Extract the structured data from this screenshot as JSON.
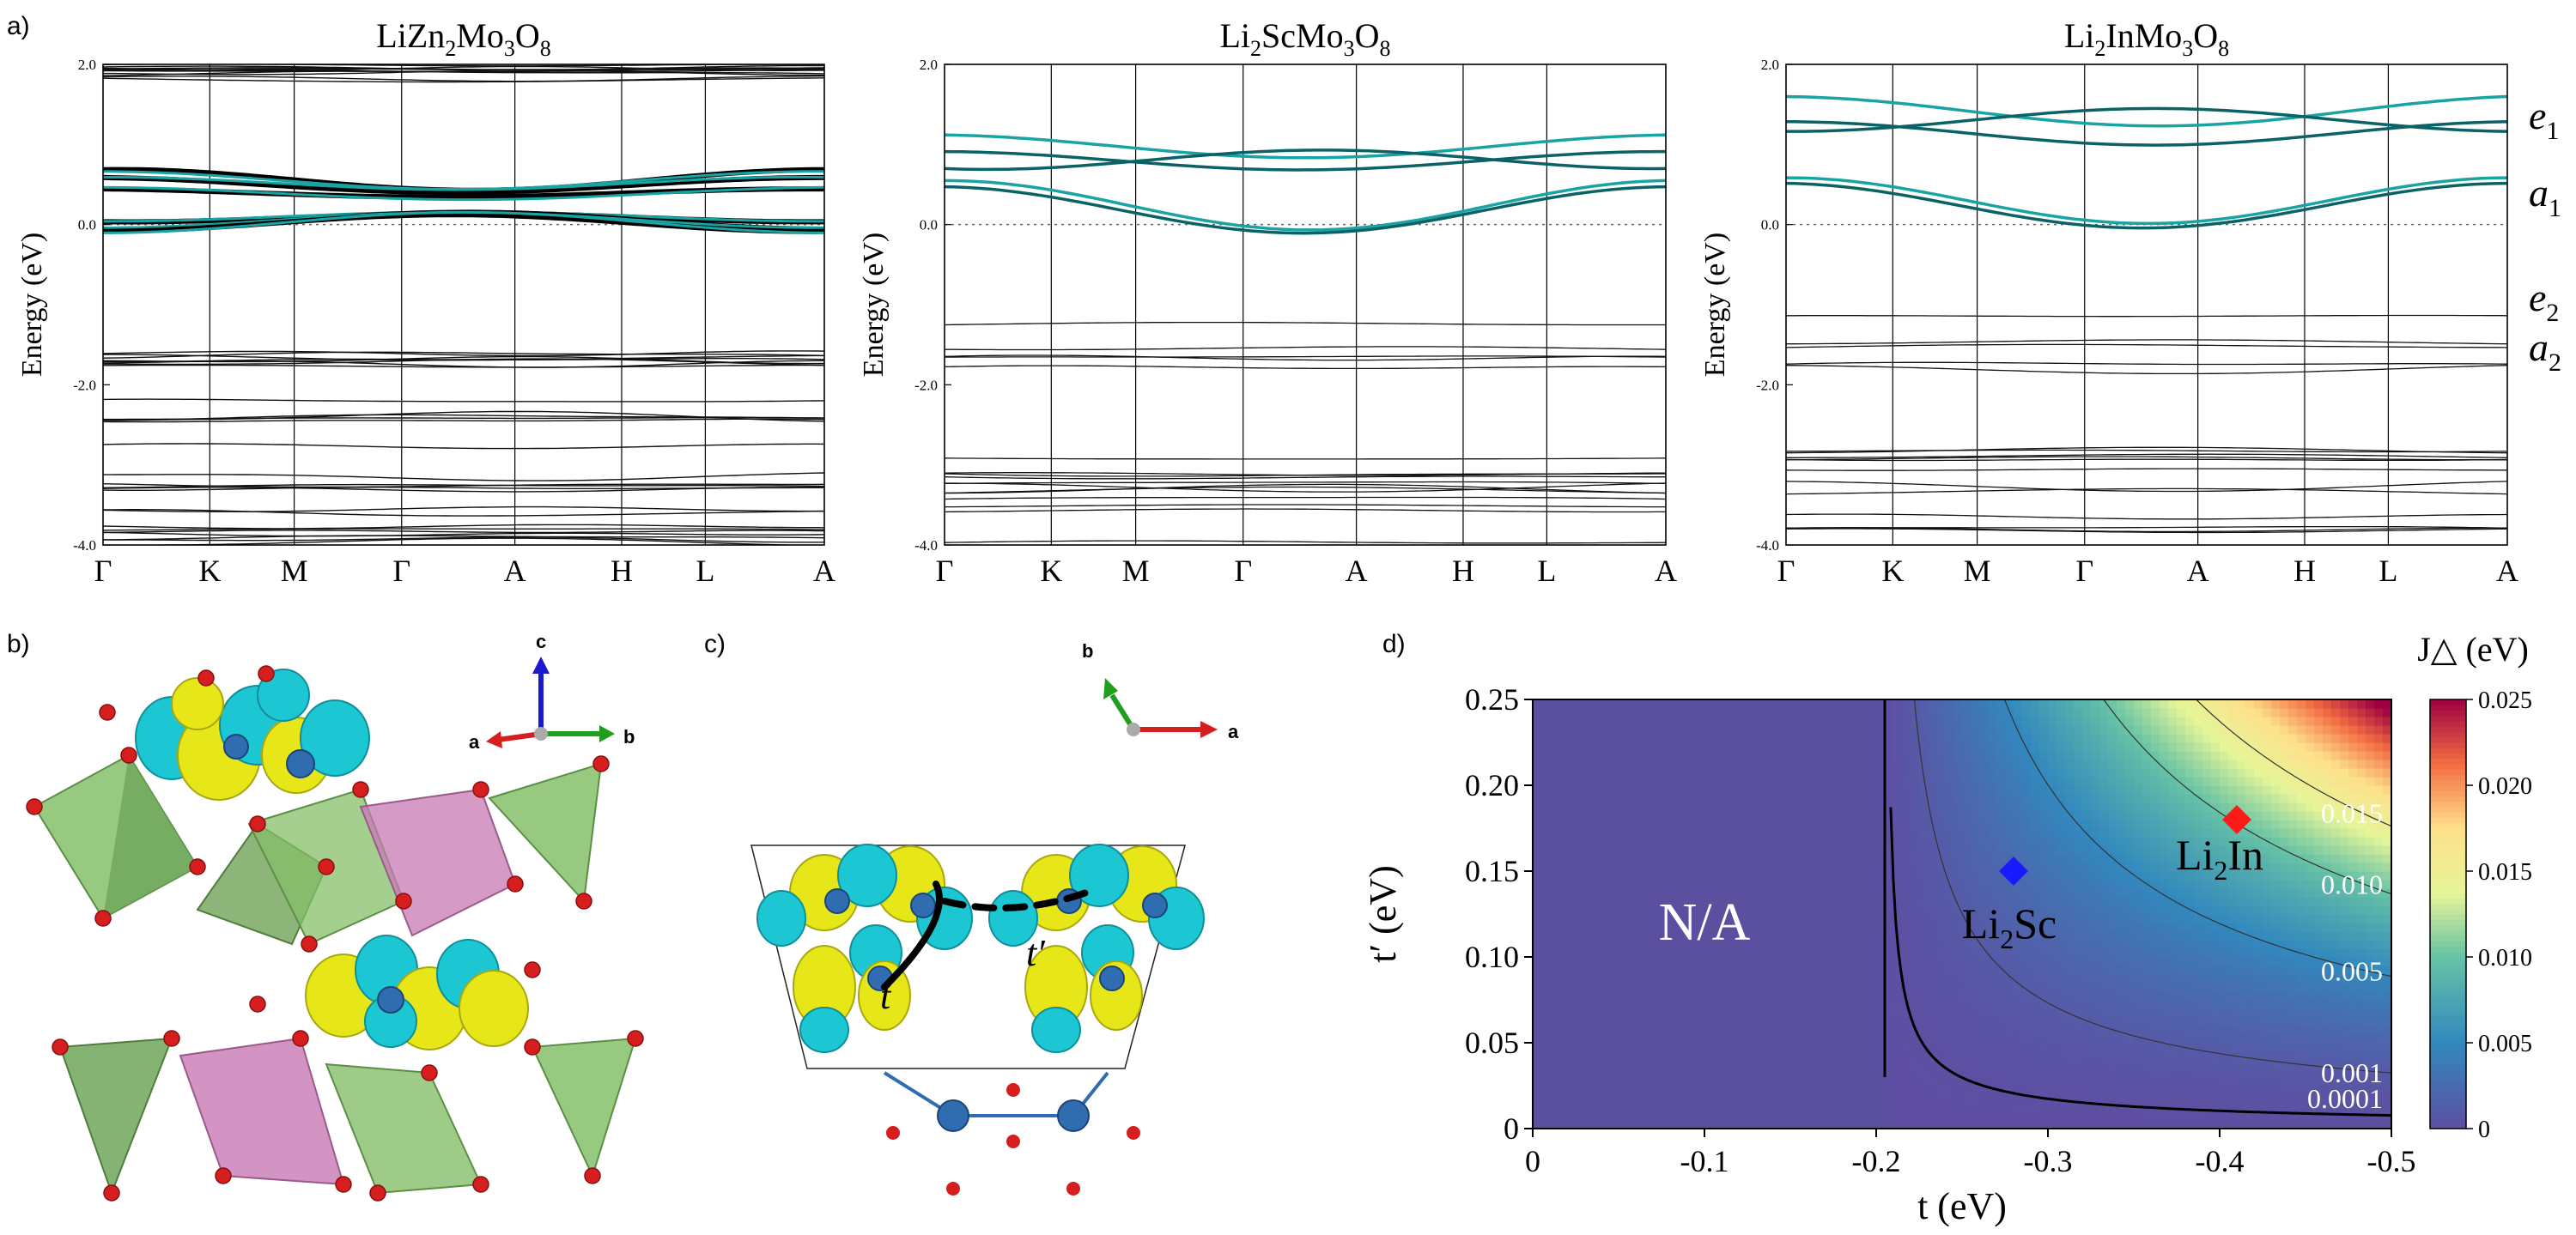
{
  "panel_labels": {
    "a": "a)",
    "b": "b)",
    "c": "c)",
    "d": "d)"
  },
  "band_panels": [
    {
      "formula": [
        [
          "LiZn",
          ""
        ],
        [
          "2",
          "sub"
        ],
        [
          "Mo",
          ""
        ],
        [
          "3",
          "sub"
        ],
        [
          "O",
          ""
        ],
        [
          "8",
          "sub"
        ]
      ],
      "show_right_labels": false
    },
    {
      "formula": [
        [
          "Li",
          ""
        ],
        [
          "2",
          "sub"
        ],
        [
          "ScMo",
          ""
        ],
        [
          "3",
          "sub"
        ],
        [
          "O",
          ""
        ],
        [
          "8",
          "sub"
        ]
      ],
      "show_right_labels": false
    },
    {
      "formula": [
        [
          "Li",
          ""
        ],
        [
          "2",
          "sub"
        ],
        [
          "InMo",
          ""
        ],
        [
          "3",
          "sub"
        ],
        [
          "O",
          ""
        ],
        [
          "8",
          "sub"
        ]
      ],
      "show_right_labels": true
    }
  ],
  "band_axis": {
    "ylabel": "Energy (eV)",
    "ylim": [
      -4.0,
      2.0
    ],
    "yticks": [
      "2.0",
      "0.0",
      "-2.0",
      "-4.0"
    ],
    "ytick_values": [
      2.0,
      0.0,
      -2.0,
      -4.0
    ],
    "kpoints": [
      "Γ",
      "K",
      "M",
      "Γ",
      "A",
      "H",
      "L",
      "A"
    ],
    "kpoint_positions": [
      0.0,
      0.148,
      0.265,
      0.414,
      0.571,
      0.719,
      0.835,
      1.0
    ]
  },
  "orbital_labels": [
    {
      "letter": "e",
      "sub": "1"
    },
    {
      "letter": "a",
      "sub": "1"
    },
    {
      "letter": "e",
      "sub": "2"
    },
    {
      "letter": "a",
      "sub": "2"
    }
  ],
  "structure_axes": {
    "b": {
      "c": "c",
      "a": "a",
      "b": "b"
    },
    "c": {
      "b": "b",
      "a": "a"
    }
  },
  "hopping_labels": {
    "t": "t",
    "t_prime": "t′"
  },
  "chart_data": {
    "type": "heatmap",
    "title": "",
    "xlabel": "t (eV)",
    "ylabel": "t′ (eV)",
    "xlim": [
      0,
      -0.5
    ],
    "ylim": [
      0,
      0.25
    ],
    "xticks": [
      "0",
      "-0.1",
      "-0.2",
      "-0.3",
      "-0.4",
      "-0.5"
    ],
    "xtick_values": [
      0,
      -0.1,
      -0.2,
      -0.3,
      -0.4,
      -0.5
    ],
    "yticks": [
      "0",
      "0.05",
      "0.10",
      "0.15",
      "0.20",
      "0.25"
    ],
    "ytick_values": [
      0,
      0.05,
      0.1,
      0.15,
      0.2,
      0.25
    ],
    "colorbar": {
      "label": "J△ (eV)",
      "range": [
        0,
        0.025
      ],
      "ticks": [
        "0",
        "0.005",
        "0.010",
        "0.015",
        "0.020",
        "0.025"
      ],
      "tick_values": [
        0,
        0.005,
        0.01,
        0.015,
        0.02,
        0.025
      ]
    },
    "region_label": "N/A",
    "boundary_t": -0.205,
    "contours": [
      {
        "label": "0.0001",
        "value": 0.0001
      },
      {
        "label": "0.001",
        "value": 0.001
      },
      {
        "label": "0.005",
        "value": 0.005
      },
      {
        "label": "0.010",
        "value": 0.01
      },
      {
        "label": "0.015",
        "value": 0.015
      }
    ],
    "points": [
      {
        "name": "Li2Sc",
        "label_main": "Li",
        "label_sub": "2",
        "label_rest": "Sc",
        "t": -0.28,
        "t_prime": 0.15,
        "color": "#1a1aff"
      },
      {
        "name": "Li2In",
        "label_main": "Li",
        "label_sub": "2",
        "label_rest": "In",
        "t": -0.41,
        "t_prime": 0.18,
        "color": "#ff1a1a"
      }
    ]
  },
  "colors": {
    "teal_dark": "#0b6266",
    "teal": "#1aa3a3",
    "black_band": "#111111",
    "na_fill": "#5b4fa0",
    "oxygen": "#d61e1e",
    "mo": "#2f6db0",
    "lobe_yellow": "#e6e619",
    "lobe_cyan": "#1cc7d3",
    "tet_green": "#86bf6a",
    "oct_pink": "#c878b4"
  }
}
